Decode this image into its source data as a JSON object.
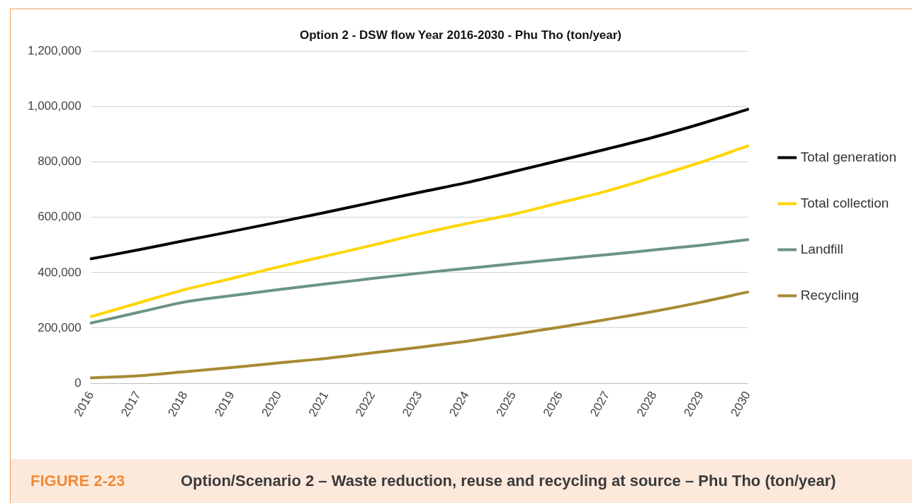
{
  "chart_data": {
    "type": "line",
    "title": "Option 2 - DSW flow Year 2016-2030 - Phu Tho (ton/year)",
    "categories": [
      "2016",
      "2017",
      "2018",
      "2019",
      "2020",
      "2021",
      "2022",
      "2023",
      "2024",
      "2025",
      "2026",
      "2027",
      "2028",
      "2029",
      "2030"
    ],
    "series": [
      {
        "name": "Total generation",
        "color": "#000000",
        "values": [
          450000,
          482000,
          516000,
          549000,
          583000,
          618000,
          654000,
          690000,
          725000,
          765000,
          806000,
          847000,
          890000,
          938000,
          990000
        ]
      },
      {
        "name": "Total collection",
        "color": "#ffd500",
        "values": [
          241000,
          290000,
          339000,
          379000,
          421000,
          460000,
          499000,
          540000,
          577000,
          611000,
          653000,
          695000,
          746000,
          799000,
          858000
        ]
      },
      {
        "name": "Landfill",
        "color": "#6b9483",
        "values": [
          218000,
          256000,
          294000,
          317000,
          339000,
          359000,
          379000,
          398000,
          415000,
          432000,
          449000,
          465000,
          482000,
          499000,
          519000
        ]
      },
      {
        "name": "Recycling",
        "color": "#a88a34",
        "values": [
          20000,
          27000,
          42000,
          57000,
          74000,
          90000,
          110000,
          130000,
          152000,
          177000,
          203000,
          231000,
          260000,
          293000,
          330000
        ]
      }
    ],
    "ylim": [
      0,
      1200000
    ],
    "yticks": [
      0,
      {
        "value": 200000,
        "label": "200,000"
      },
      {
        "value": 400000,
        "label": "400,000"
      },
      {
        "value": 600000,
        "label": "600,000"
      },
      {
        "value": 800000,
        "label": "800,000"
      },
      {
        "value": 1000000,
        "label": "1,000,000"
      },
      {
        "value": 1200000,
        "label": "1,200,000"
      }
    ],
    "grid": "y",
    "legend": "right",
    "marker": "none",
    "line_style": "solid",
    "annotations": [
      "FIGURE 2-23",
      "Option/Scenario 2 – Waste reduction, reuse and recycling at source – Phu Tho (ton/year)"
    ]
  }
}
